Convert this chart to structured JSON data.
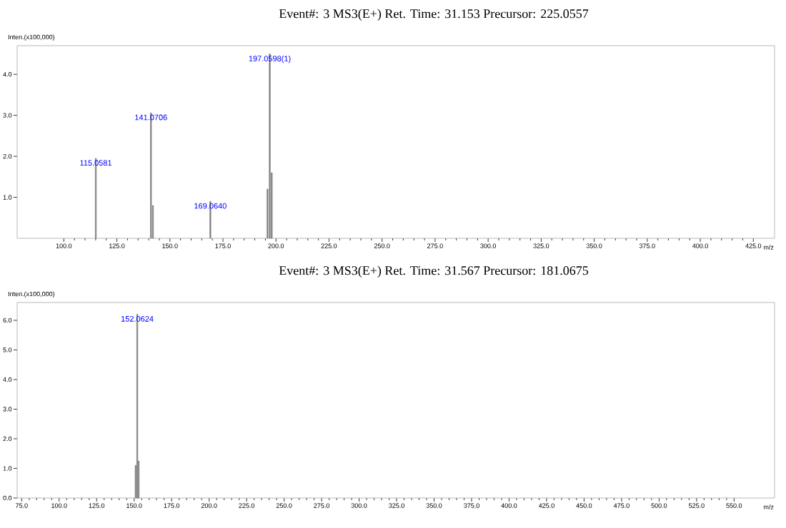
{
  "chart_data": [
    {
      "type": "bar",
      "title": "Event#: 3 MS3(E+)     Ret. Time: 31.153     Precursor: 225.0557",
      "xlabel": "m/z",
      "ylabel": "Inten.(x100,000)",
      "x": [
        115.06,
        141.07,
        142.0,
        169.06,
        196.0,
        197.06,
        198.0
      ],
      "values": [
        1.95,
        3.06,
        0.8,
        0.9,
        1.2,
        4.5,
        1.6
      ],
      "color": "#808080",
      "xlim": [
        78,
        435
      ],
      "ylim": [
        0,
        4.7
      ],
      "xticks": [
        {
          "value": 100,
          "label": "100.0"
        },
        {
          "value": 125,
          "label": "125.0"
        },
        {
          "value": 150,
          "label": "150.0"
        },
        {
          "value": 175,
          "label": "175.0"
        },
        {
          "value": 200,
          "label": "200.0"
        },
        {
          "value": 225,
          "label": "225.0"
        },
        {
          "value": 250,
          "label": "250.0"
        },
        {
          "value": 275,
          "label": "275.0"
        },
        {
          "value": 300,
          "label": "300.0"
        },
        {
          "value": 325,
          "label": "325.0"
        },
        {
          "value": 350,
          "label": "350.0"
        },
        {
          "value": 375,
          "label": "375.0"
        },
        {
          "value": 400,
          "label": "400.0"
        },
        {
          "value": 425,
          "label": "425.0"
        }
      ],
      "yticks": [
        {
          "value": 1,
          "label": "1.0"
        },
        {
          "value": 2,
          "label": "2.0"
        },
        {
          "value": 3,
          "label": "3.0"
        },
        {
          "value": 4,
          "label": "4.0"
        }
      ],
      "annotations": [
        {
          "text": "115.0581",
          "x": 115.06,
          "y": 1.95
        },
        {
          "text": "141.0706",
          "x": 141.07,
          "y": 3.06
        },
        {
          "text": "169.0640",
          "x": 169.06,
          "y": 0.9
        },
        {
          "text": "197.0598(1)",
          "x": 197.06,
          "y": 4.5
        }
      ]
    },
    {
      "type": "bar",
      "title": "Event#: 3 MS3(E+)     Ret. Time: 31.567     Precursor: 181.0675",
      "xlabel": "m/z",
      "ylabel": "Inten.(x100,000)",
      "x": [
        151.0,
        152.06,
        153.0
      ],
      "values": [
        1.1,
        6.2,
        1.25
      ],
      "color": "#808080",
      "xlim": [
        72,
        577
      ],
      "ylim": [
        0,
        6.6
      ],
      "xticks": [
        {
          "value": 75,
          "label": "75.0"
        },
        {
          "value": 100,
          "label": "100.0"
        },
        {
          "value": 125,
          "label": "125.0"
        },
        {
          "value": 150,
          "label": "150.0"
        },
        {
          "value": 175,
          "label": "175.0"
        },
        {
          "value": 200,
          "label": "200.0"
        },
        {
          "value": 225,
          "label": "225.0"
        },
        {
          "value": 250,
          "label": "250.0"
        },
        {
          "value": 275,
          "label": "275.0"
        },
        {
          "value": 300,
          "label": "300.0"
        },
        {
          "value": 325,
          "label": "325.0"
        },
        {
          "value": 350,
          "label": "350.0"
        },
        {
          "value": 375,
          "label": "375.0"
        },
        {
          "value": 400,
          "label": "400.0"
        },
        {
          "value": 425,
          "label": "425.0"
        },
        {
          "value": 450,
          "label": "450.0"
        },
        {
          "value": 475,
          "label": "475.0"
        },
        {
          "value": 500,
          "label": "500.0"
        },
        {
          "value": 525,
          "label": "525.0"
        },
        {
          "value": 550,
          "label": "550.0"
        }
      ],
      "yticks": [
        {
          "value": 0,
          "label": "0.0"
        },
        {
          "value": 1,
          "label": "1.0"
        },
        {
          "value": 2,
          "label": "2.0"
        },
        {
          "value": 3,
          "label": "3.0"
        },
        {
          "value": 4,
          "label": "4.0"
        },
        {
          "value": 5,
          "label": "5.0"
        },
        {
          "value": 6,
          "label": "6.0"
        }
      ],
      "annotations": [
        {
          "text": "152.0624",
          "x": 152.06,
          "y": 6.2
        }
      ]
    }
  ]
}
